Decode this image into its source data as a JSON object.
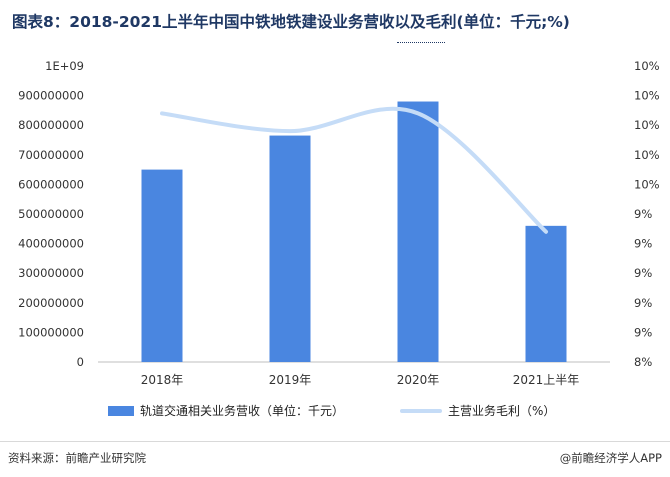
{
  "title": "图表8：2018-2021上半年中国中铁地铁建设业务营收以及毛利(单位：千元;%)",
  "footer": {
    "source": "资料来源：前瞻产业研究院",
    "brand": "@前瞻经济学人APP"
  },
  "colors": {
    "bar": "#4a86e0",
    "line": "#c5dcf7"
  },
  "chart_data": {
    "type": "bar",
    "categories": [
      "2018年",
      "2019年",
      "2020年",
      "2021上半年"
    ],
    "series": [
      {
        "name": "轨道交通相关业务营收（单位：千元）",
        "type": "bar",
        "axis": "left",
        "values": [
          650000000,
          765000000,
          880000000,
          460000000
        ]
      },
      {
        "name": "主营业务毛利（%）",
        "type": "line",
        "axis": "right",
        "values": [
          10.1,
          9.95,
          10.1,
          9.1
        ]
      }
    ],
    "left_axis": {
      "ylim": [
        0,
        1000000000
      ],
      "tick_labels": [
        "0",
        "100000000",
        "200000000",
        "300000000",
        "400000000",
        "500000000",
        "600000000",
        "700000000",
        "800000000",
        "900000000",
        "1E+09"
      ]
    },
    "right_axis": {
      "ylim": [
        8,
        10.5
      ],
      "tick_labels": [
        "8%",
        "9%",
        "9%",
        "9%",
        "9%",
        "9%",
        "10%",
        "10%",
        "10%",
        "10%",
        "10%"
      ]
    },
    "grid": false,
    "legend": "bottom"
  }
}
